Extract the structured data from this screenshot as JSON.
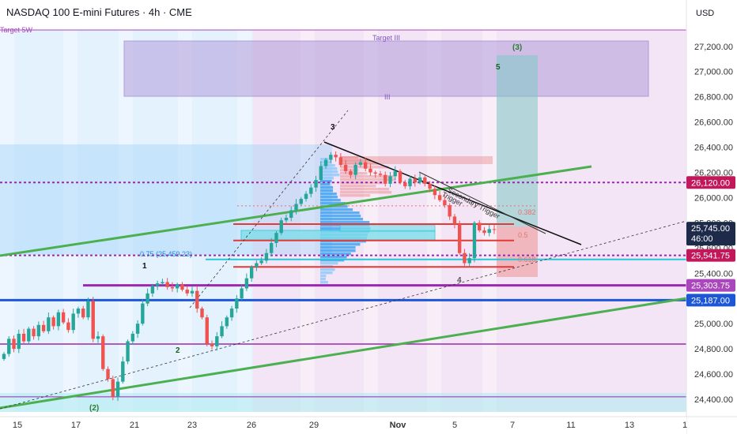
{
  "header": {
    "title": "NASDAQ 100 E-mini Futures · 4h · CME",
    "currency": "USD"
  },
  "colors": {
    "up": "#26a69a",
    "down": "#ef5350",
    "green_line": "#4caf50",
    "blue_line": "#1e56d8",
    "purple_line": "#9c27b0",
    "red_line": "#e53935",
    "target_zone": "#b39ddb",
    "tag_red": "#c2185b",
    "tag_purple": "#ab47bc",
    "tag_blue": "#1e56d8",
    "tag_dark": "#1e2a4a"
  },
  "chart_data": {
    "type": "line",
    "title": "NASDAQ 100 E-mini Futures · 4h · CME",
    "xlabel": "",
    "ylabel": "",
    "ylim": [
      24300,
      27330
    ],
    "x_ticks": [
      "15",
      "17",
      "21",
      "23",
      "26",
      "29",
      "Nov",
      "5",
      "7",
      "11",
      "13",
      "1"
    ],
    "y_ticks": [
      "24,400.00",
      "24,600.00",
      "24,800.00",
      "25,000.00",
      "25,200.00",
      "25,400.00",
      "25,600.00",
      "25,800.00",
      "26,000.00",
      "26,200.00",
      "26,400.00",
      "26,600.00",
      "26,800.00",
      "27,000.00",
      "27,200.00"
    ],
    "y_tick_values": [
      24400,
      24600,
      24800,
      25000,
      25200,
      25400,
      25600,
      25800,
      26000,
      26200,
      26400,
      26600,
      26800,
      27000,
      27200
    ],
    "series": [
      {
        "values": [
          24760,
          24880,
          24800,
          24920,
          24860,
          24960,
          24900,
          24990,
          24940,
          25050,
          24980,
          25090,
          25010,
          24950,
          25080,
          25120,
          25050,
          25180,
          24880,
          24900,
          24640,
          24560,
          24420,
          24540,
          24700,
          24860,
          24920,
          25000,
          25160,
          25240,
          25300,
          25320,
          25330,
          25290,
          25280,
          25310,
          25270,
          25240,
          25260,
          25120,
          25050,
          24840,
          24820,
          24900,
          24980,
          25050,
          25120,
          25200,
          25280,
          25360,
          25450,
          25480,
          25500,
          25560,
          25640,
          25720,
          25820,
          25840,
          25900,
          25950,
          25990,
          26030,
          26080,
          26140,
          26250,
          26300,
          26340,
          26320,
          26260,
          26210,
          26180,
          26260,
          26280,
          26230,
          26200,
          26190,
          26180,
          26110,
          26170,
          26210,
          26120,
          26090,
          26150,
          26120,
          26160,
          26110,
          26070,
          26020,
          25980,
          25940,
          25850,
          25790,
          25560,
          25480,
          25520,
          25800,
          25740,
          25720,
          25750,
          25745
        ]
      }
    ],
    "levels": [
      {
        "label": "26,120.00",
        "value": 26120
      },
      {
        "label": "25,541.75",
        "value": 25541.75
      },
      {
        "label": "25,303.75",
        "value": 25303.75
      },
      {
        "label": "25,187.00",
        "value": 25187
      }
    ],
    "last_price": "25,745.00",
    "countdown": "46:00",
    "fib_labels": [
      "0.382",
      "0.5",
      "0.618"
    ],
    "annotations": [
      "Target 5W",
      "Target III",
      "III",
      "Trigger",
      "Secondary Trigger",
      "0.75 (25,459.23)"
    ],
    "wave_labels": [
      "1",
      "2",
      "3",
      "4",
      "5",
      "(2)",
      "(3)"
    ]
  }
}
